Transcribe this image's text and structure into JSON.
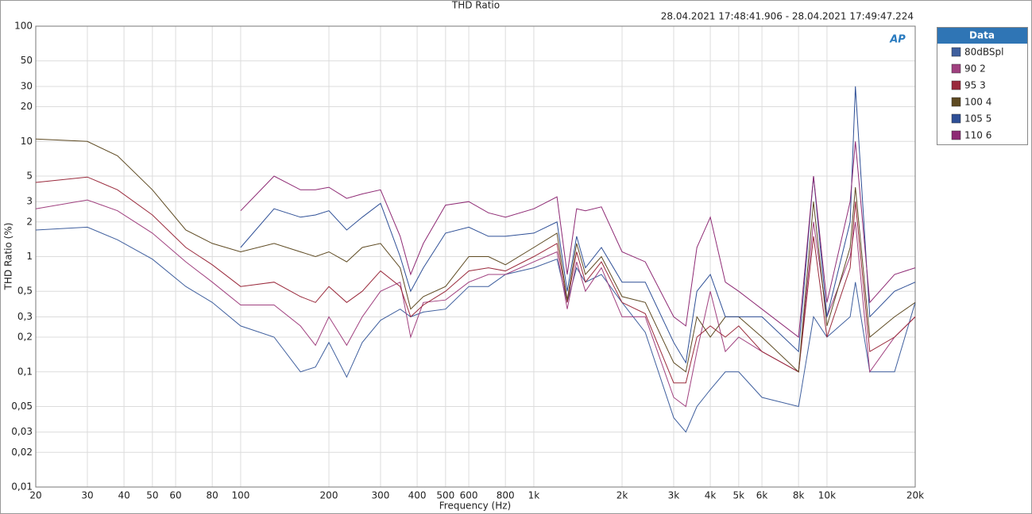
{
  "chart_data": {
    "type": "line",
    "title": "THD Ratio",
    "subtitle": "28.04.2021 17:48:41.906 - 28.04.2021 17:49:47.224",
    "logo": "AP",
    "x_label": "Frequency (Hz)",
    "y_label": "THD Ratio (%)",
    "legend_title": "Data",
    "legend": "right",
    "log_x": true,
    "log_y": true,
    "grid": true,
    "x": [
      20,
      30,
      38,
      50,
      65,
      80,
      100,
      130,
      160,
      180,
      200,
      230,
      260,
      300,
      350,
      380,
      420,
      500,
      600,
      700,
      800,
      1000,
      1200,
      1300,
      1400,
      1500,
      1700,
      2000,
      2400,
      3000,
      3300,
      3600,
      4000,
      4500,
      5000,
      6000,
      8000,
      9000,
      10000,
      12000,
      12500,
      14000,
      17000,
      20000
    ],
    "xlim": [
      20,
      20000
    ],
    "xticks": [
      20,
      30,
      40,
      50,
      60,
      80,
      100,
      200,
      300,
      400,
      500,
      600,
      800,
      {
        "value": 1000,
        "label": "1k"
      },
      {
        "value": 2000,
        "label": "2k"
      },
      {
        "value": 3000,
        "label": "3k"
      },
      {
        "value": 4000,
        "label": "4k"
      },
      {
        "value": 5000,
        "label": "5k"
      },
      {
        "value": 6000,
        "label": "6k"
      },
      {
        "value": 8000,
        "label": "8k"
      },
      {
        "value": 10000,
        "label": "10k"
      },
      {
        "value": 20000,
        "label": "20k"
      }
    ],
    "ylim": [
      0.01,
      100
    ],
    "yticks": [
      100,
      50,
      30,
      20,
      10,
      5,
      3,
      2,
      1,
      {
        "value": 0.5,
        "label": "0,5"
      },
      {
        "value": 0.3,
        "label": "0,3"
      },
      {
        "value": 0.2,
        "label": "0,2"
      },
      {
        "value": 0.1,
        "label": "0,1"
      },
      {
        "value": 0.05,
        "label": "0,05"
      },
      {
        "value": 0.03,
        "label": "0,03"
      },
      {
        "value": 0.02,
        "label": "0,02"
      },
      {
        "value": 0.01,
        "label": "0,01"
      }
    ],
    "series": [
      {
        "name": "80dBSpl",
        "color": "#3f5f9e",
        "values": [
          1.7,
          1.8,
          1.4,
          0.95,
          0.55,
          0.4,
          0.25,
          0.2,
          0.1,
          0.11,
          0.18,
          0.09,
          0.18,
          0.28,
          0.35,
          0.3,
          0.33,
          0.35,
          0.55,
          0.55,
          0.7,
          0.8,
          0.95,
          0.4,
          0.8,
          0.6,
          0.7,
          0.4,
          0.22,
          0.04,
          0.03,
          0.05,
          0.07,
          0.1,
          0.1,
          0.06,
          0.05,
          0.3,
          0.2,
          0.3,
          0.6,
          0.1,
          0.1,
          0.4
        ]
      },
      {
        "name": "90 2",
        "color": "#a0407f",
        "values": [
          2.6,
          3.1,
          2.5,
          1.6,
          0.9,
          0.6,
          0.38,
          0.38,
          0.25,
          0.17,
          0.3,
          0.17,
          0.3,
          0.5,
          0.6,
          0.2,
          0.4,
          0.42,
          0.6,
          0.7,
          0.7,
          0.9,
          1.1,
          0.35,
          0.9,
          0.5,
          0.8,
          0.3,
          0.3,
          0.06,
          0.05,
          0.15,
          0.5,
          0.15,
          0.2,
          0.15,
          0.1,
          2,
          0.3,
          1,
          2,
          0.1,
          0.2,
          0.3
        ]
      },
      {
        "name": "95 3",
        "color": "#9a2a3c",
        "values": [
          4.4,
          4.9,
          3.8,
          2.3,
          1.2,
          0.85,
          0.55,
          0.6,
          0.45,
          0.4,
          0.55,
          0.4,
          0.5,
          0.75,
          0.55,
          0.3,
          0.38,
          0.5,
          0.75,
          0.8,
          0.75,
          1,
          1.3,
          0.4,
          1.1,
          0.6,
          0.9,
          0.4,
          0.32,
          0.08,
          0.08,
          0.2,
          0.25,
          0.2,
          0.25,
          0.15,
          0.1,
          1.5,
          0.2,
          0.8,
          3,
          0.15,
          0.2,
          0.3
        ]
      },
      {
        "name": "100 4",
        "color": "#5e4a22",
        "values": [
          10.5,
          10,
          7.5,
          3.8,
          1.7,
          1.3,
          1.1,
          1.3,
          1.1,
          1.0,
          1.1,
          0.9,
          1.2,
          1.3,
          0.8,
          0.35,
          0.45,
          0.55,
          1.0,
          1.0,
          0.85,
          1.2,
          1.6,
          0.42,
          1.3,
          0.7,
          1.0,
          0.45,
          0.4,
          0.12,
          0.1,
          0.3,
          0.2,
          0.3,
          0.3,
          0.2,
          0.1,
          3,
          0.25,
          1.2,
          4,
          0.2,
          0.3,
          0.4
        ]
      },
      {
        "name": "105 5",
        "color": "#2e4f96",
        "values": [
          null,
          null,
          null,
          null,
          null,
          null,
          1.2,
          2.6,
          2.2,
          2.3,
          2.5,
          1.7,
          2.2,
          2.9,
          1.0,
          0.5,
          0.8,
          1.6,
          1.8,
          1.5,
          1.5,
          1.6,
          2,
          0.5,
          1.5,
          0.8,
          1.2,
          0.6,
          0.6,
          0.18,
          0.12,
          0.5,
          0.7,
          0.3,
          0.3,
          0.3,
          0.15,
          5,
          0.3,
          2,
          30,
          0.3,
          0.5,
          0.6
        ]
      },
      {
        "name": "110 6",
        "color": "#8e2a74",
        "values": [
          null,
          null,
          null,
          null,
          null,
          null,
          2.5,
          5,
          3.8,
          3.8,
          4,
          3.2,
          3.5,
          3.8,
          1.5,
          0.7,
          1.3,
          2.8,
          3,
          2.4,
          2.2,
          2.6,
          3.3,
          0.7,
          2.6,
          2.5,
          2.7,
          1.1,
          0.9,
          0.3,
          0.25,
          1.2,
          2.2,
          0.6,
          0.5,
          0.35,
          0.2,
          5,
          0.4,
          3,
          10,
          0.4,
          0.7,
          0.8
        ]
      }
    ]
  }
}
